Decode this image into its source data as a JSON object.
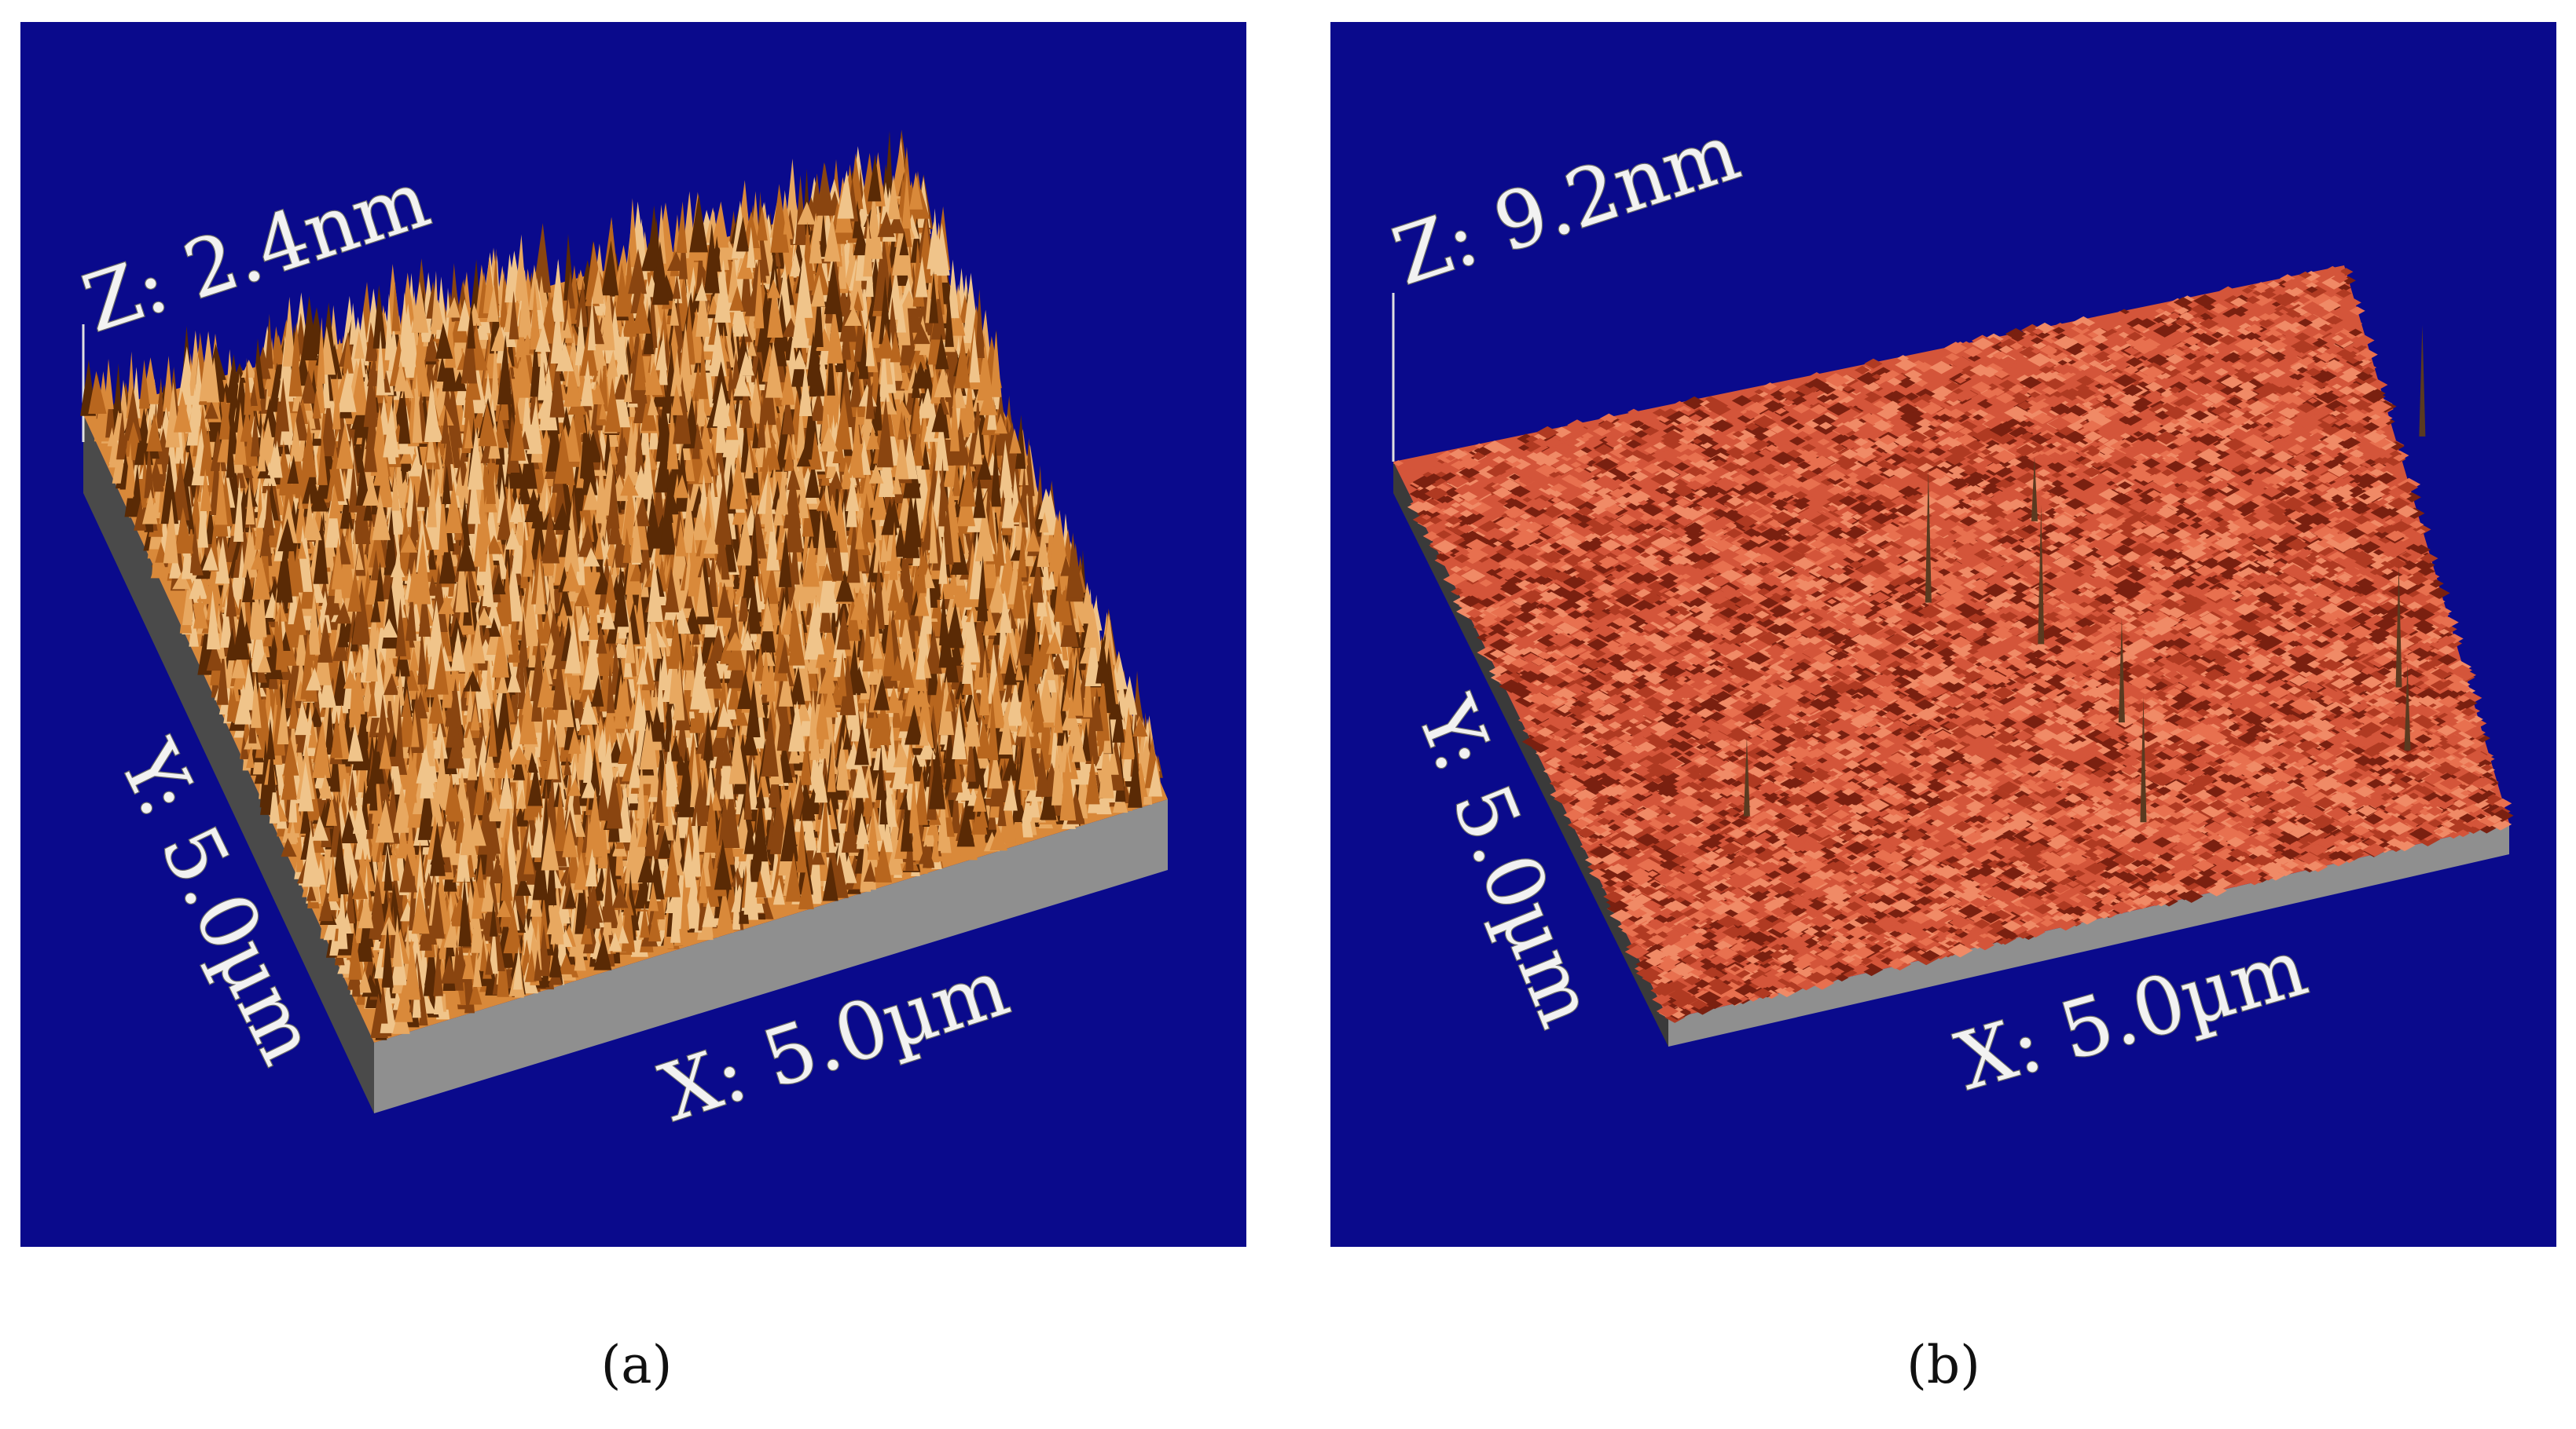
{
  "panels": [
    {
      "id": "a",
      "caption": "(a)",
      "z_label": "Z: 2.4nm",
      "y_label": "Y: 5.0µm",
      "x_label": "X: 5.0µm",
      "background_color": "#0a0a8c",
      "surface_colors": [
        "#5a2a05",
        "#8a4510",
        "#b8661e",
        "#d9893a",
        "#e8a860",
        "#f0c48a"
      ],
      "side_color": "#8f8f8f",
      "texture": "dense sharp peaks",
      "spikes": 0
    },
    {
      "id": "b",
      "caption": "(b)",
      "z_label": "Z: 9.2nm",
      "y_label": "Y: 5.0µm",
      "x_label": "X: 5.0µm",
      "background_color": "#0a0a8c",
      "surface_colors": [
        "#7a2010",
        "#b03a22",
        "#d4553a",
        "#e8704f",
        "#f08a66"
      ],
      "side_color": "#8f8f8f",
      "texture": "fine granular with few tall spikes",
      "spikes": 9
    }
  ]
}
